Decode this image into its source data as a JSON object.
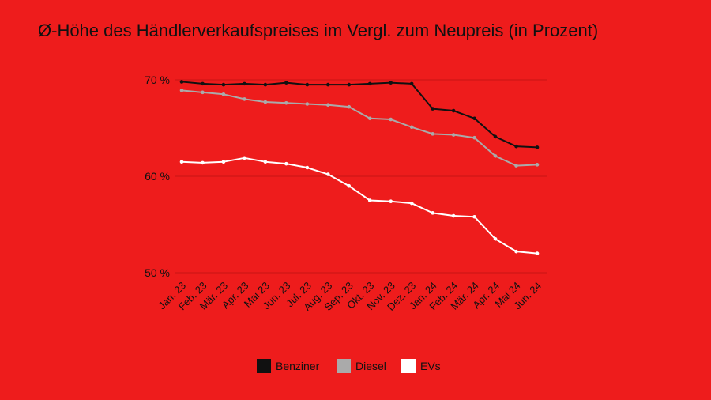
{
  "chart_data": {
    "type": "line",
    "title": "Ø-Höhe des Händlerverkaufspreises im Vergl. zum Neupreis (in Prozent)",
    "xlabel": "",
    "ylabel": "",
    "ylim": [
      50,
      70
    ],
    "yticks": [
      {
        "value": 70,
        "label": "70 %"
      },
      {
        "value": 60,
        "label": "60 %"
      },
      {
        "value": 50,
        "label": "50 %"
      }
    ],
    "grid": true,
    "legend_position": "bottom",
    "categories": [
      "Jan. 23",
      "Feb. 23",
      "Mär. 23",
      "Apr. 23",
      "Mai 23",
      "Jun. 23",
      "Jul. 23",
      "Aug. 23",
      "Sep. 23",
      "Okt. 23",
      "Nov. 23",
      "Dez. 23",
      "Jan. 24",
      "Feb. 24",
      "Mär. 24",
      "Apr. 24",
      "Mai 24",
      "Jun. 24"
    ],
    "series": [
      {
        "name": "Benziner",
        "color": "#111111",
        "values": [
          69.8,
          69.6,
          69.5,
          69.6,
          69.5,
          69.7,
          69.5,
          69.5,
          69.5,
          69.6,
          69.7,
          69.6,
          67.0,
          66.8,
          66.0,
          64.1,
          63.1,
          63.0
        ]
      },
      {
        "name": "Diesel",
        "color": "#aaaaaa",
        "values": [
          68.9,
          68.7,
          68.5,
          68.0,
          67.7,
          67.6,
          67.5,
          67.4,
          67.2,
          66.0,
          65.9,
          65.1,
          64.4,
          64.3,
          64.0,
          62.1,
          61.1,
          61.2
        ]
      },
      {
        "name": "EVs",
        "color": "#ffffff",
        "values": [
          61.5,
          61.4,
          61.5,
          61.9,
          61.5,
          61.3,
          60.9,
          60.2,
          59.0,
          57.5,
          57.4,
          57.2,
          56.2,
          55.9,
          55.8,
          53.5,
          52.2,
          52.0
        ]
      }
    ]
  }
}
